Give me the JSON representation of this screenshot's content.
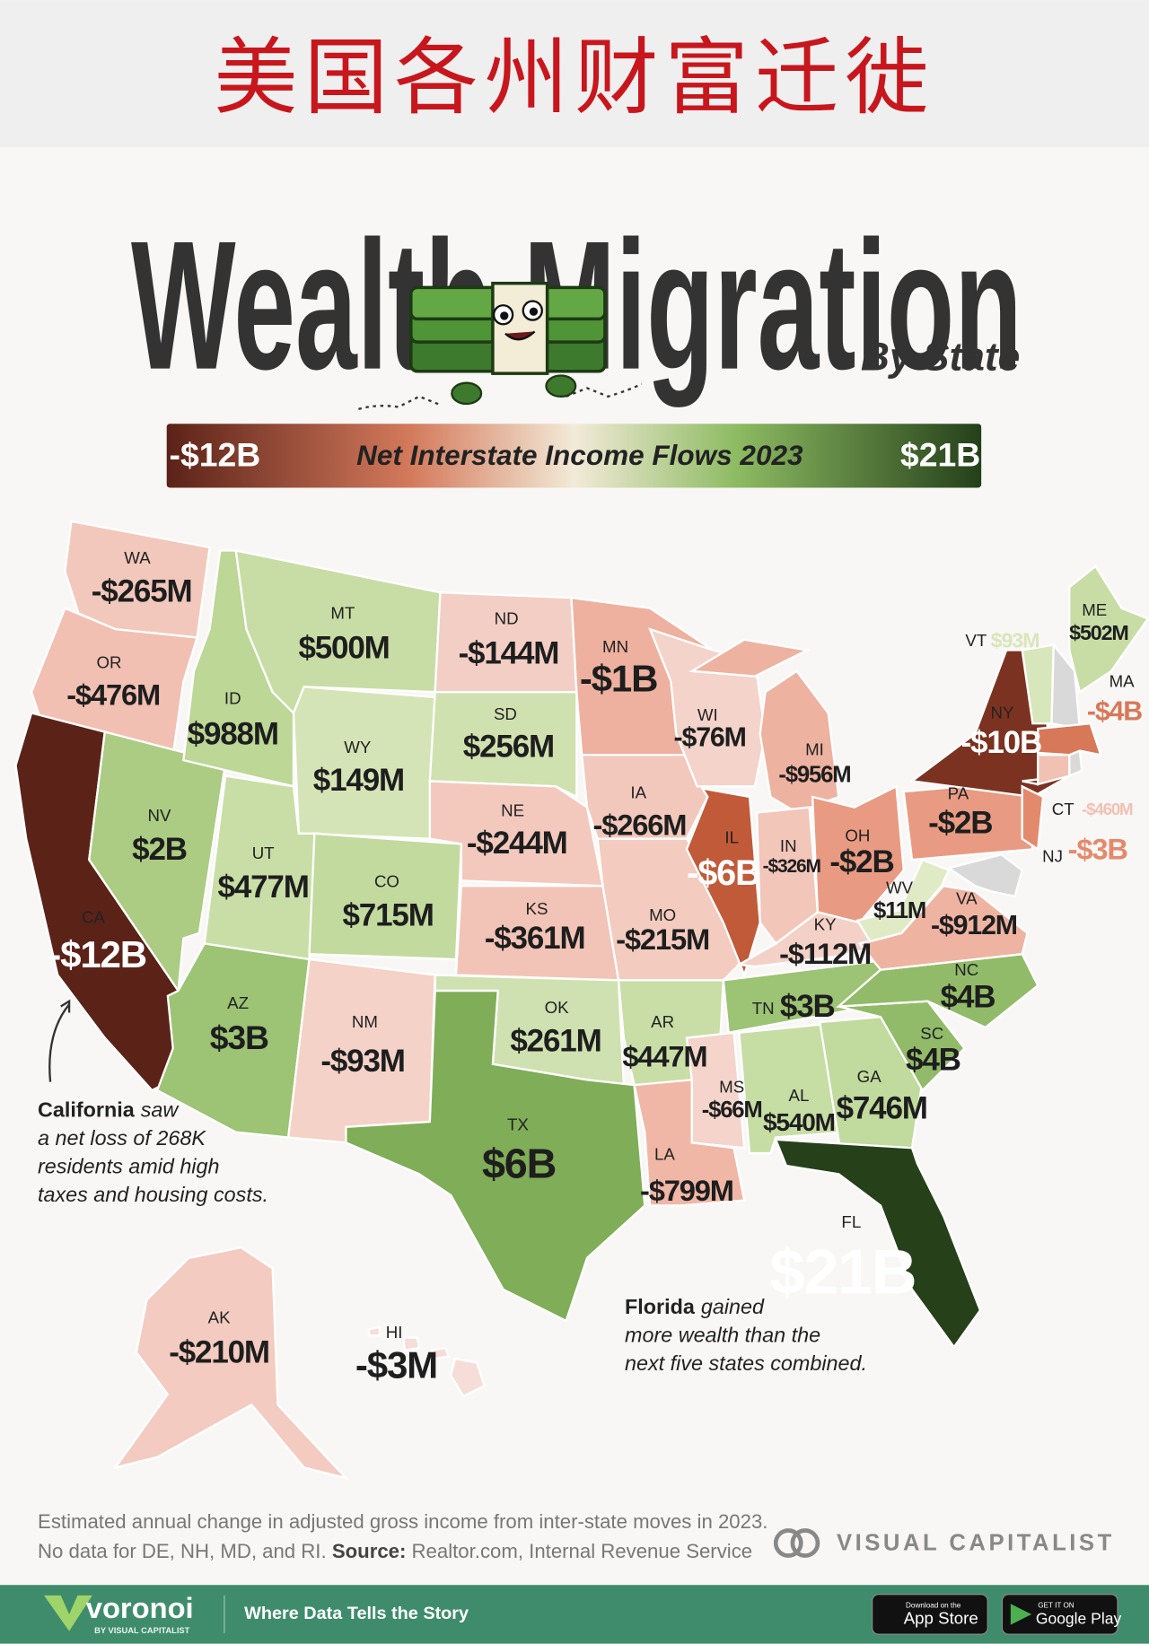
{
  "header": {
    "title": "美国各州财富迁徙"
  },
  "infographic": {
    "title": "Wealth Migration",
    "subtitle": "By State"
  },
  "map": {
    "legend": {
      "title": "Net Interstate Income Flows 2023",
      "min": {
        "value": -12000,
        "label": "-$12B"
      },
      "max": {
        "value": 21000,
        "label": "$21B"
      }
    },
    "states": [
      {
        "code": "WA",
        "value": -265,
        "label": "-$265M"
      },
      {
        "code": "OR",
        "value": -476,
        "label": "-$476M"
      },
      {
        "code": "CA",
        "value": -12000,
        "label": "-$12B"
      },
      {
        "code": "NV",
        "value": 2000,
        "label": "$2B"
      },
      {
        "code": "ID",
        "value": 988,
        "label": "$988M"
      },
      {
        "code": "MT",
        "value": 500,
        "label": "$500M"
      },
      {
        "code": "WY",
        "value": 149,
        "label": "$149M"
      },
      {
        "code": "UT",
        "value": 477,
        "label": "$477M"
      },
      {
        "code": "CO",
        "value": 715,
        "label": "$715M"
      },
      {
        "code": "AZ",
        "value": 3000,
        "label": "$3B"
      },
      {
        "code": "NM",
        "value": -93,
        "label": "-$93M"
      },
      {
        "code": "ND",
        "value": -144,
        "label": "-$144M"
      },
      {
        "code": "SD",
        "value": 256,
        "label": "$256M"
      },
      {
        "code": "NE",
        "value": -244,
        "label": "-$244M"
      },
      {
        "code": "KS",
        "value": -361,
        "label": "-$361M"
      },
      {
        "code": "OK",
        "value": 261,
        "label": "$261M"
      },
      {
        "code": "TX",
        "value": 6000,
        "label": "$6B"
      },
      {
        "code": "MN",
        "value": -1000,
        "label": "-$1B"
      },
      {
        "code": "IA",
        "value": -266,
        "label": "-$266M"
      },
      {
        "code": "MO",
        "value": -215,
        "label": "-$215M"
      },
      {
        "code": "AR",
        "value": 447,
        "label": "$447M"
      },
      {
        "code": "LA",
        "value": -799,
        "label": "-$799M"
      },
      {
        "code": "WI",
        "value": -76,
        "label": "-$76M"
      },
      {
        "code": "IL",
        "value": -6000,
        "label": "-$6B"
      },
      {
        "code": "MI",
        "value": -956,
        "label": "-$956M"
      },
      {
        "code": "IN",
        "value": -326,
        "label": "-$326M"
      },
      {
        "code": "OH",
        "value": -2000,
        "label": "-$2B"
      },
      {
        "code": "KY",
        "value": -112,
        "label": "-$112M"
      },
      {
        "code": "TN",
        "value": 3000,
        "label": "$3B"
      },
      {
        "code": "MS",
        "value": -66,
        "label": "-$66M"
      },
      {
        "code": "AL",
        "value": 540,
        "label": "$540M"
      },
      {
        "code": "GA",
        "value": 746,
        "label": "$746M"
      },
      {
        "code": "FL",
        "value": 21000,
        "label": "$21B"
      },
      {
        "code": "SC",
        "value": 4000,
        "label": "$4B"
      },
      {
        "code": "NC",
        "value": 4000,
        "label": "$4B"
      },
      {
        "code": "VA",
        "value": -912,
        "label": "-$912M"
      },
      {
        "code": "WV",
        "value": 11,
        "label": "$11M"
      },
      {
        "code": "PA",
        "value": -2000,
        "label": "-$2B"
      },
      {
        "code": "NY",
        "value": -10000,
        "label": "-$10B"
      },
      {
        "code": "VT",
        "value": 93,
        "label": "$93M"
      },
      {
        "code": "ME",
        "value": 502,
        "label": "$502M"
      },
      {
        "code": "MA",
        "value": -4000,
        "label": "-$4B"
      },
      {
        "code": "CT",
        "value": -460,
        "label": "-$460M"
      },
      {
        "code": "NJ",
        "value": -3000,
        "label": "-$3B"
      },
      {
        "code": "AK",
        "value": -210,
        "label": "-$210M"
      },
      {
        "code": "HI",
        "value": -3,
        "label": "-$3M"
      }
    ]
  },
  "annotations": {
    "california": {
      "bold": "California",
      "lines": [
        "saw",
        "a net loss of 268K",
        "residents amid high",
        "taxes and housing costs."
      ]
    },
    "florida": {
      "bold": "Florida",
      "lines": [
        "gained",
        "more wealth than the",
        "next five states combined."
      ]
    }
  },
  "footer": {
    "note": "Estimated annual change in adjusted gross income from inter-state moves in 2023.",
    "no_data": "No data for DE, NH, MD, and RI.",
    "source_label": "Source:",
    "source": "Realtor.com, Internal Revenue Service",
    "brand": "VISUAL CAPITALIST"
  },
  "bottom_bar": {
    "logo": "voronoi",
    "logo_sub": "BY VISUAL CAPITALIST",
    "tagline": "Where Data Tells the Story",
    "app_store_small": "Download on the",
    "app_store": "App Store",
    "google_small": "GET IT ON",
    "google": "Google Play"
  }
}
